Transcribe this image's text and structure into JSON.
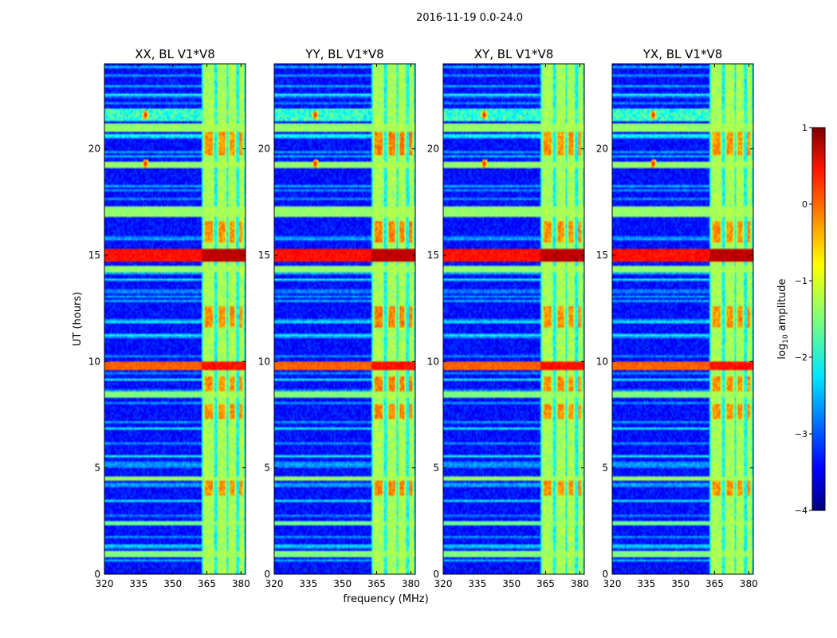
{
  "chart_data": {
    "type": "heatmap",
    "suptitle": "2016-11-19 0.0-24.0",
    "xlabel": "frequency (MHz)",
    "ylabel": "UT (hours)",
    "xlim": [
      320,
      382
    ],
    "ylim": [
      0,
      24
    ],
    "x_ticks": [
      320,
      335,
      350,
      365,
      380
    ],
    "y_ticks": [
      0,
      5,
      10,
      15,
      20
    ],
    "panels": [
      {
        "title": "XX, BL V1*V8",
        "polarization": "XX"
      },
      {
        "title": "YY, BL V1*V8",
        "polarization": "YY"
      },
      {
        "title": "XY, BL V1*V8",
        "polarization": "XY"
      },
      {
        "title": "YX, BL V1*V8",
        "polarization": "YX"
      }
    ],
    "colorbar": {
      "label": "log10 amplitude",
      "label_base": "log",
      "label_sub": "10",
      "label_rest": " amplitude",
      "range": [
        -4,
        1
      ],
      "ticks": [
        "1",
        "0",
        "−1",
        "−2",
        "−3",
        "−4"
      ],
      "colormap": "jet"
    },
    "features": {
      "bright_freq_band_mhz": [
        363,
        381
      ],
      "bright_columns_mhz": [
        [
          363.5,
          368
        ],
        [
          369.5,
          373.5
        ],
        [
          374.5,
          378
        ],
        [
          379,
          381
        ]
      ],
      "strong_time_bands_hours": [
        {
          "t0": 14.7,
          "t1": 15.25,
          "level": 0.3
        },
        {
          "t0": 9.6,
          "t1": 10.0,
          "level": -0.1
        },
        {
          "t0": 16.8,
          "t1": 17.3,
          "level": -1.4
        },
        {
          "t0": 19.1,
          "t1": 19.35,
          "level": -1.4
        },
        {
          "t0": 20.8,
          "t1": 21.2,
          "level": -1.4
        },
        {
          "t0": 14.25,
          "t1": 14.5,
          "level": -1.4
        },
        {
          "t0": 8.3,
          "t1": 8.55,
          "level": -1.5
        },
        {
          "t0": 4.4,
          "t1": 4.6,
          "level": -1.4
        },
        {
          "t0": 0.8,
          "t1": 1.1,
          "level": -1.5
        },
        {
          "t0": 2.35,
          "t1": 2.5,
          "level": -1.6
        }
      ],
      "rfi_spots": [
        {
          "f": 338,
          "t": 21.6
        },
        {
          "f": 338,
          "t": 19.3
        }
      ]
    }
  }
}
